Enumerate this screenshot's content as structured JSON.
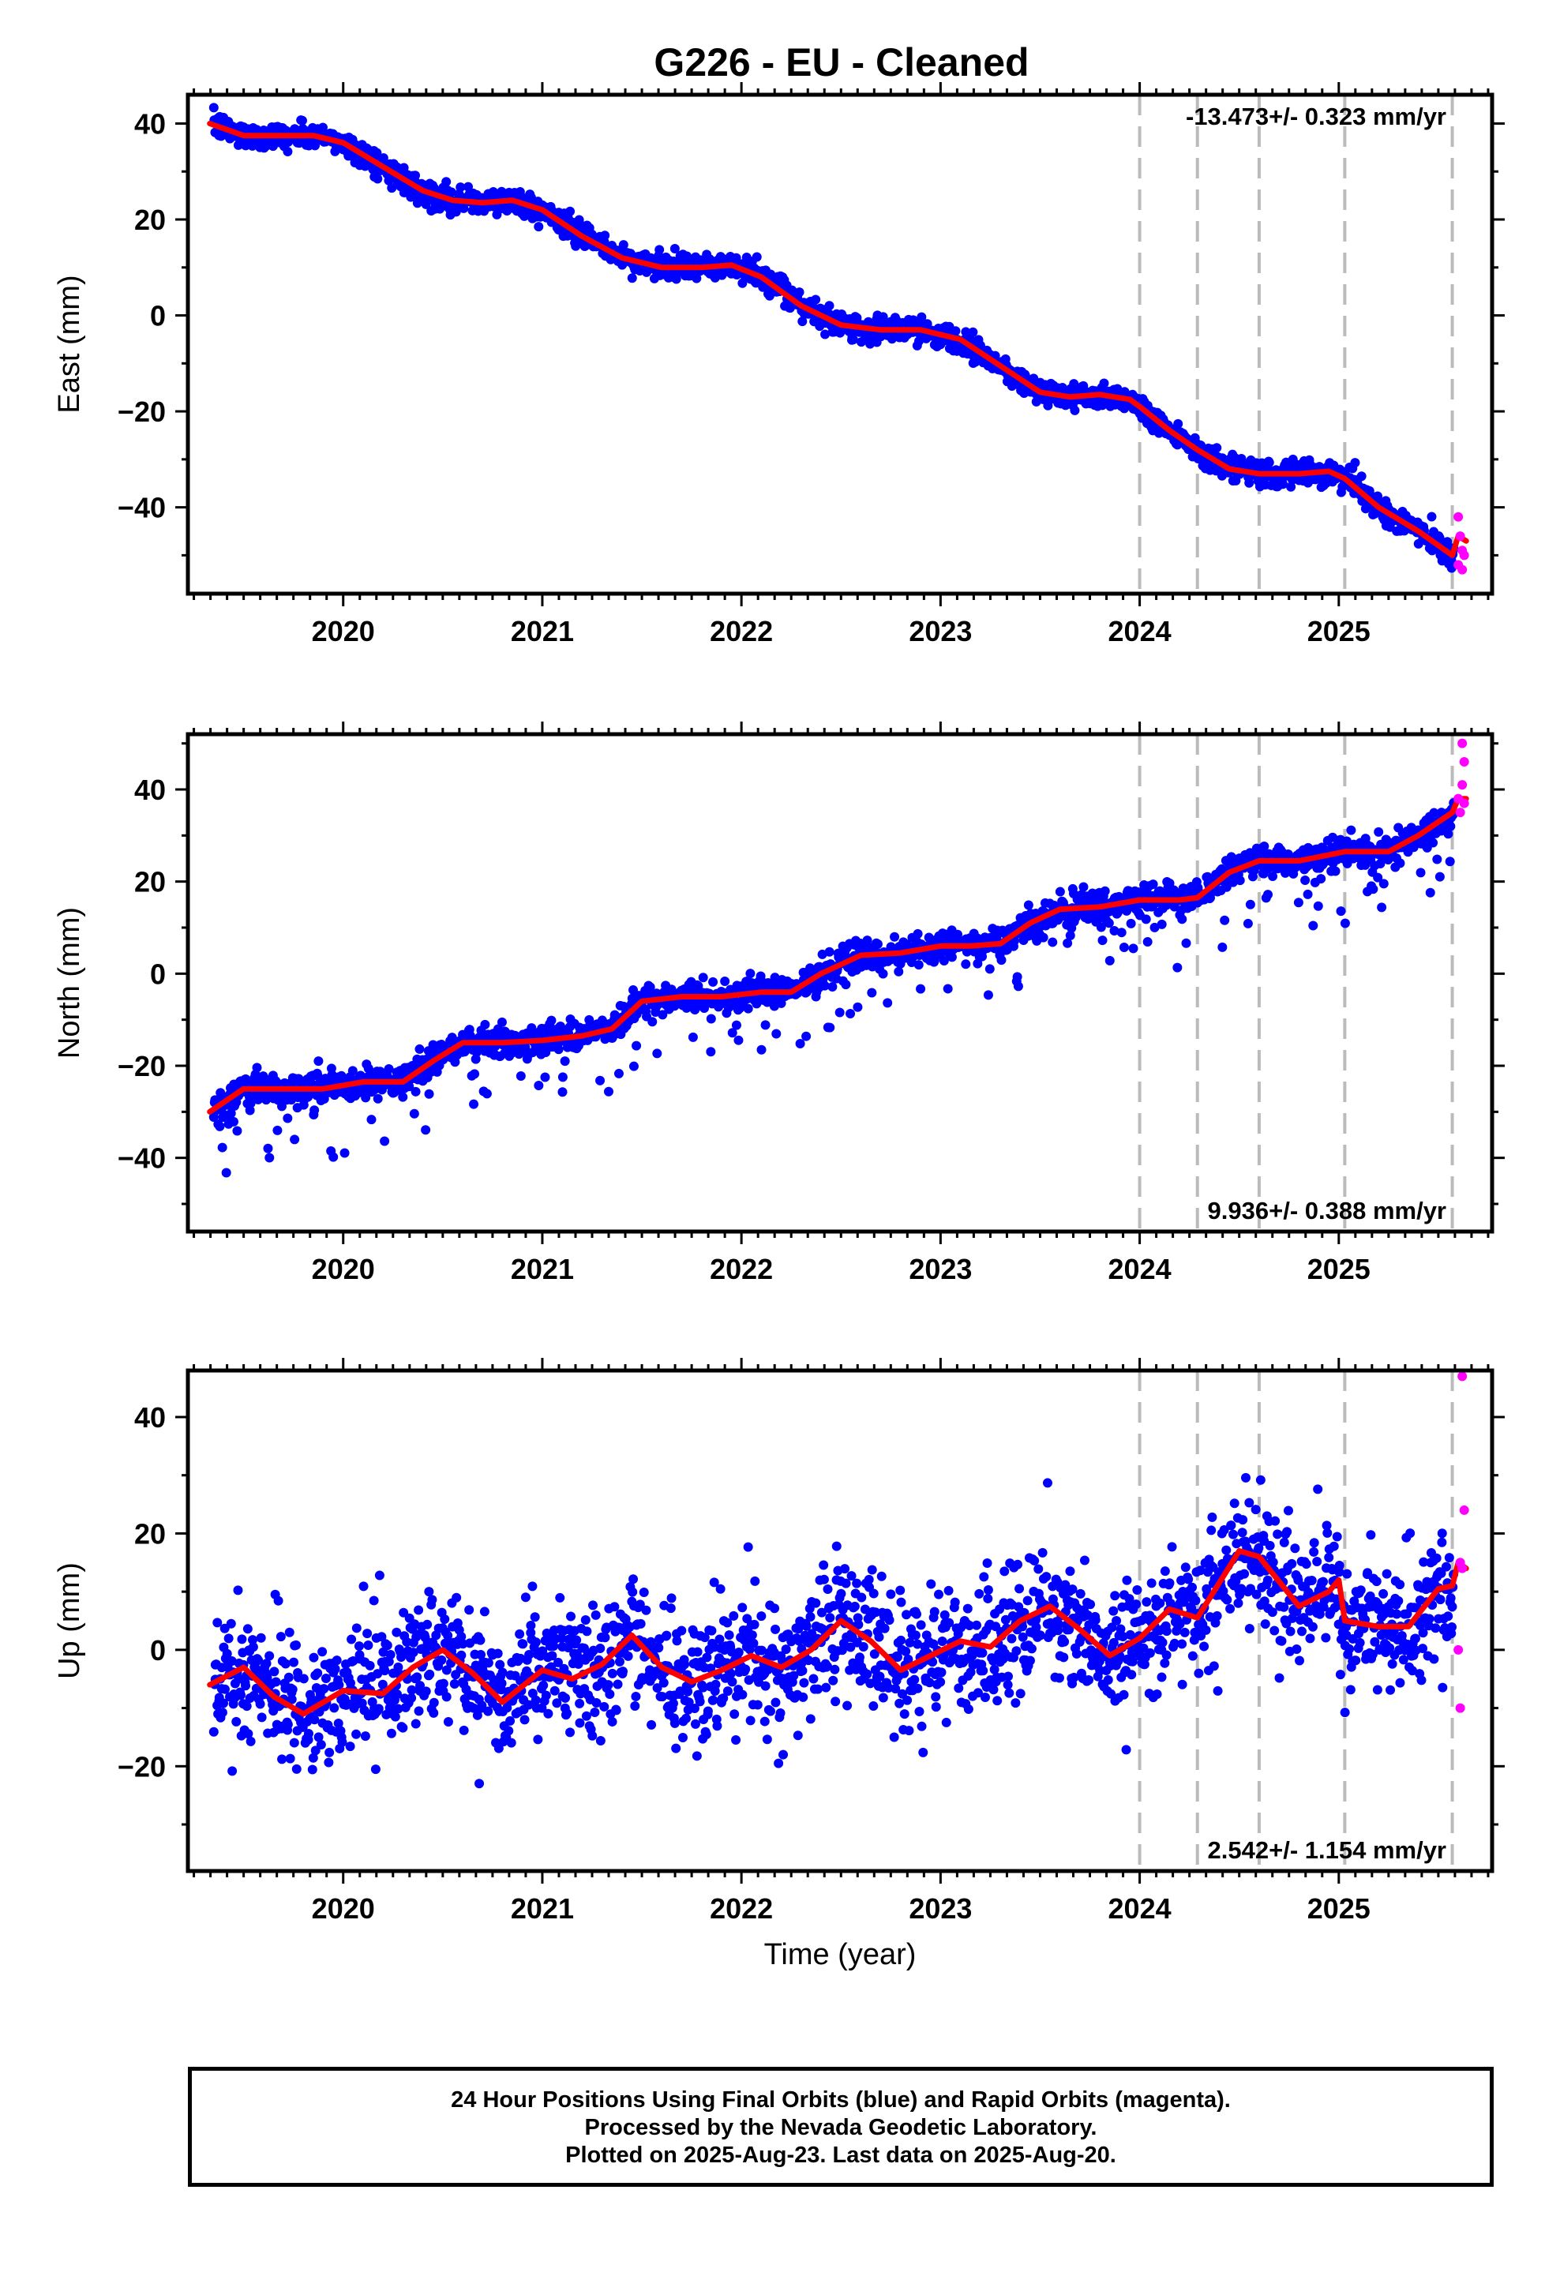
{
  "title": "G226  - EU - Cleaned",
  "colors": {
    "final_orbits": "#0000ff",
    "rapid_orbits": "#ff00ff",
    "model": "#ff0000",
    "event_lines": "#bbbbbb",
    "axes": "#000000"
  },
  "chart_data": [
    {
      "type": "scatter",
      "component": "East",
      "ylabel": "East (mm)",
      "xlabel": "",
      "xlim": [
        2019.22,
        2025.77
      ],
      "ylim": [
        -58,
        46
      ],
      "xticks": [
        2020,
        2021,
        2022,
        2023,
        2024,
        2025
      ],
      "yticks": [
        40,
        20,
        0,
        -20,
        -40
      ],
      "rate_label": "-13.473+/- 0.323 mm/yr",
      "rate_position": "top-right",
      "event_lines_x": [
        2024.0,
        2024.29,
        2024.6,
        2025.03,
        2025.57
      ],
      "model_curve": {
        "x": [
          2019.33,
          2019.5,
          2019.7,
          2019.85,
          2020.0,
          2020.2,
          2020.4,
          2020.55,
          2020.7,
          2020.85,
          2021.0,
          2021.2,
          2021.4,
          2021.6,
          2021.8,
          2021.95,
          2022.1,
          2022.3,
          2022.5,
          2022.7,
          2022.9,
          2023.1,
          2023.3,
          2023.5,
          2023.65,
          2023.8,
          2023.95,
          2024.0,
          2024.15,
          2024.29,
          2024.45,
          2024.6,
          2024.8,
          2024.95,
          2025.03,
          2025.2,
          2025.4,
          2025.57,
          2025.6,
          2025.64
        ],
        "y": [
          40,
          37.5,
          37.5,
          37.5,
          36,
          31,
          26,
          24,
          23.5,
          24,
          22,
          16.5,
          12,
          10,
          10,
          10.5,
          8,
          2,
          -2,
          -3,
          -3,
          -5,
          -10.5,
          -16,
          -17,
          -16.5,
          -17.5,
          -19,
          -24,
          -28,
          -32,
          -33,
          -33,
          -32.5,
          -34,
          -40,
          -45,
          -50,
          -46,
          -47
        ]
      },
      "rapid_orbit_points": {
        "x": [
          2025.6,
          2025.61,
          2025.62,
          2025.63,
          2025.6,
          2025.62
        ],
        "y": [
          -42,
          -46,
          -49,
          -50,
          -52,
          -53
        ]
      }
    },
    {
      "type": "scatter",
      "component": "North",
      "ylabel": "North (mm)",
      "xlabel": "",
      "xlim": [
        2019.22,
        2025.77
      ],
      "ylim": [
        -56,
        52
      ],
      "xticks": [
        2020,
        2021,
        2022,
        2023,
        2024,
        2025
      ],
      "yticks": [
        40,
        20,
        0,
        -20,
        -40
      ],
      "rate_label": "9.936+/- 0.388 mm/yr",
      "rate_position": "bottom-right",
      "event_lines_x": [
        2024.0,
        2024.29,
        2024.6,
        2025.03,
        2025.57
      ],
      "model_curve": {
        "x": [
          2019.33,
          2019.5,
          2019.7,
          2019.9,
          2020.1,
          2020.3,
          2020.45,
          2020.6,
          2020.8,
          2021.0,
          2021.2,
          2021.35,
          2021.5,
          2021.7,
          2021.9,
          2022.1,
          2022.25,
          2022.4,
          2022.6,
          2022.8,
          2023.0,
          2023.15,
          2023.3,
          2023.45,
          2023.6,
          2023.8,
          2024.0,
          2024.2,
          2024.29,
          2024.45,
          2024.6,
          2024.8,
          2025.03,
          2025.25,
          2025.4,
          2025.57,
          2025.6,
          2025.64
        ],
        "y": [
          -30,
          -25,
          -25,
          -25,
          -23.5,
          -23.5,
          -19,
          -15,
          -15,
          -14.5,
          -13.5,
          -12,
          -6,
          -5,
          -5,
          -4,
          -4,
          0,
          4,
          4.5,
          6,
          6,
          6.5,
          11,
          14,
          14.5,
          16,
          16,
          16.5,
          22,
          24.5,
          24.5,
          26.5,
          26.5,
          30,
          35,
          38,
          38
        ]
      },
      "rapid_orbit_points": {
        "x": [
          2025.62,
          2025.63,
          2025.62,
          2025.6,
          2025.63,
          2025.61
        ],
        "y": [
          50,
          46,
          41,
          38,
          37,
          35
        ]
      }
    },
    {
      "type": "scatter",
      "component": "Up",
      "ylabel": "Up (mm)",
      "xlabel": "Time (year)",
      "xlim": [
        2019.22,
        2025.77
      ],
      "ylim": [
        -38,
        48
      ],
      "xticks": [
        2020,
        2021,
        2022,
        2023,
        2024,
        2025
      ],
      "yticks": [
        40,
        20,
        0,
        -20
      ],
      "rate_label": "2.542+/- 1.154 mm/yr",
      "rate_position": "bottom-right",
      "event_lines_x": [
        2024.0,
        2024.29,
        2024.6,
        2025.03,
        2025.57
      ],
      "model_curve": {
        "x": [
          2019.33,
          2019.5,
          2019.65,
          2019.8,
          2020.0,
          2020.2,
          2020.35,
          2020.5,
          2020.65,
          2020.8,
          2021.0,
          2021.15,
          2021.3,
          2021.45,
          2021.6,
          2021.75,
          2021.9,
          2022.05,
          2022.2,
          2022.35,
          2022.5,
          2022.65,
          2022.8,
          2022.95,
          2023.1,
          2023.25,
          2023.4,
          2023.55,
          2023.7,
          2023.85,
          2024.0,
          2024.15,
          2024.29,
          2024.5,
          2024.6,
          2024.8,
          2024.95,
          2025.0,
          2025.03,
          2025.2,
          2025.35,
          2025.5,
          2025.57,
          2025.6,
          2025.64
        ],
        "y": [
          -6,
          -3,
          -8,
          -11,
          -7,
          -7.5,
          -3,
          0,
          -4,
          -9,
          -3.5,
          -5,
          -2.5,
          2.5,
          -3,
          -5.5,
          -3.5,
          -1,
          -3,
          0,
          5,
          1.5,
          -3.5,
          -1,
          1.5,
          0.5,
          5,
          7.5,
          3.5,
          -1,
          2,
          7,
          5.5,
          17,
          16,
          7.5,
          10,
          12,
          5,
          4,
          4,
          10.5,
          11,
          15,
          14
        ]
      },
      "rapid_orbit_points": {
        "x": [
          2025.62,
          2025.63,
          2025.61,
          2025.62,
          2025.6,
          2025.61
        ],
        "y": [
          47,
          24,
          15,
          14,
          0,
          -10
        ]
      }
    }
  ],
  "caption": {
    "line1": "24 Hour Positions Using Final Orbits (blue) and Rapid Orbits (magenta).",
    "line2": "Processed by the Nevada Geodetic Laboratory.",
    "line3": "Plotted on 2025-Aug-23. Last data on 2025-Aug-20."
  }
}
